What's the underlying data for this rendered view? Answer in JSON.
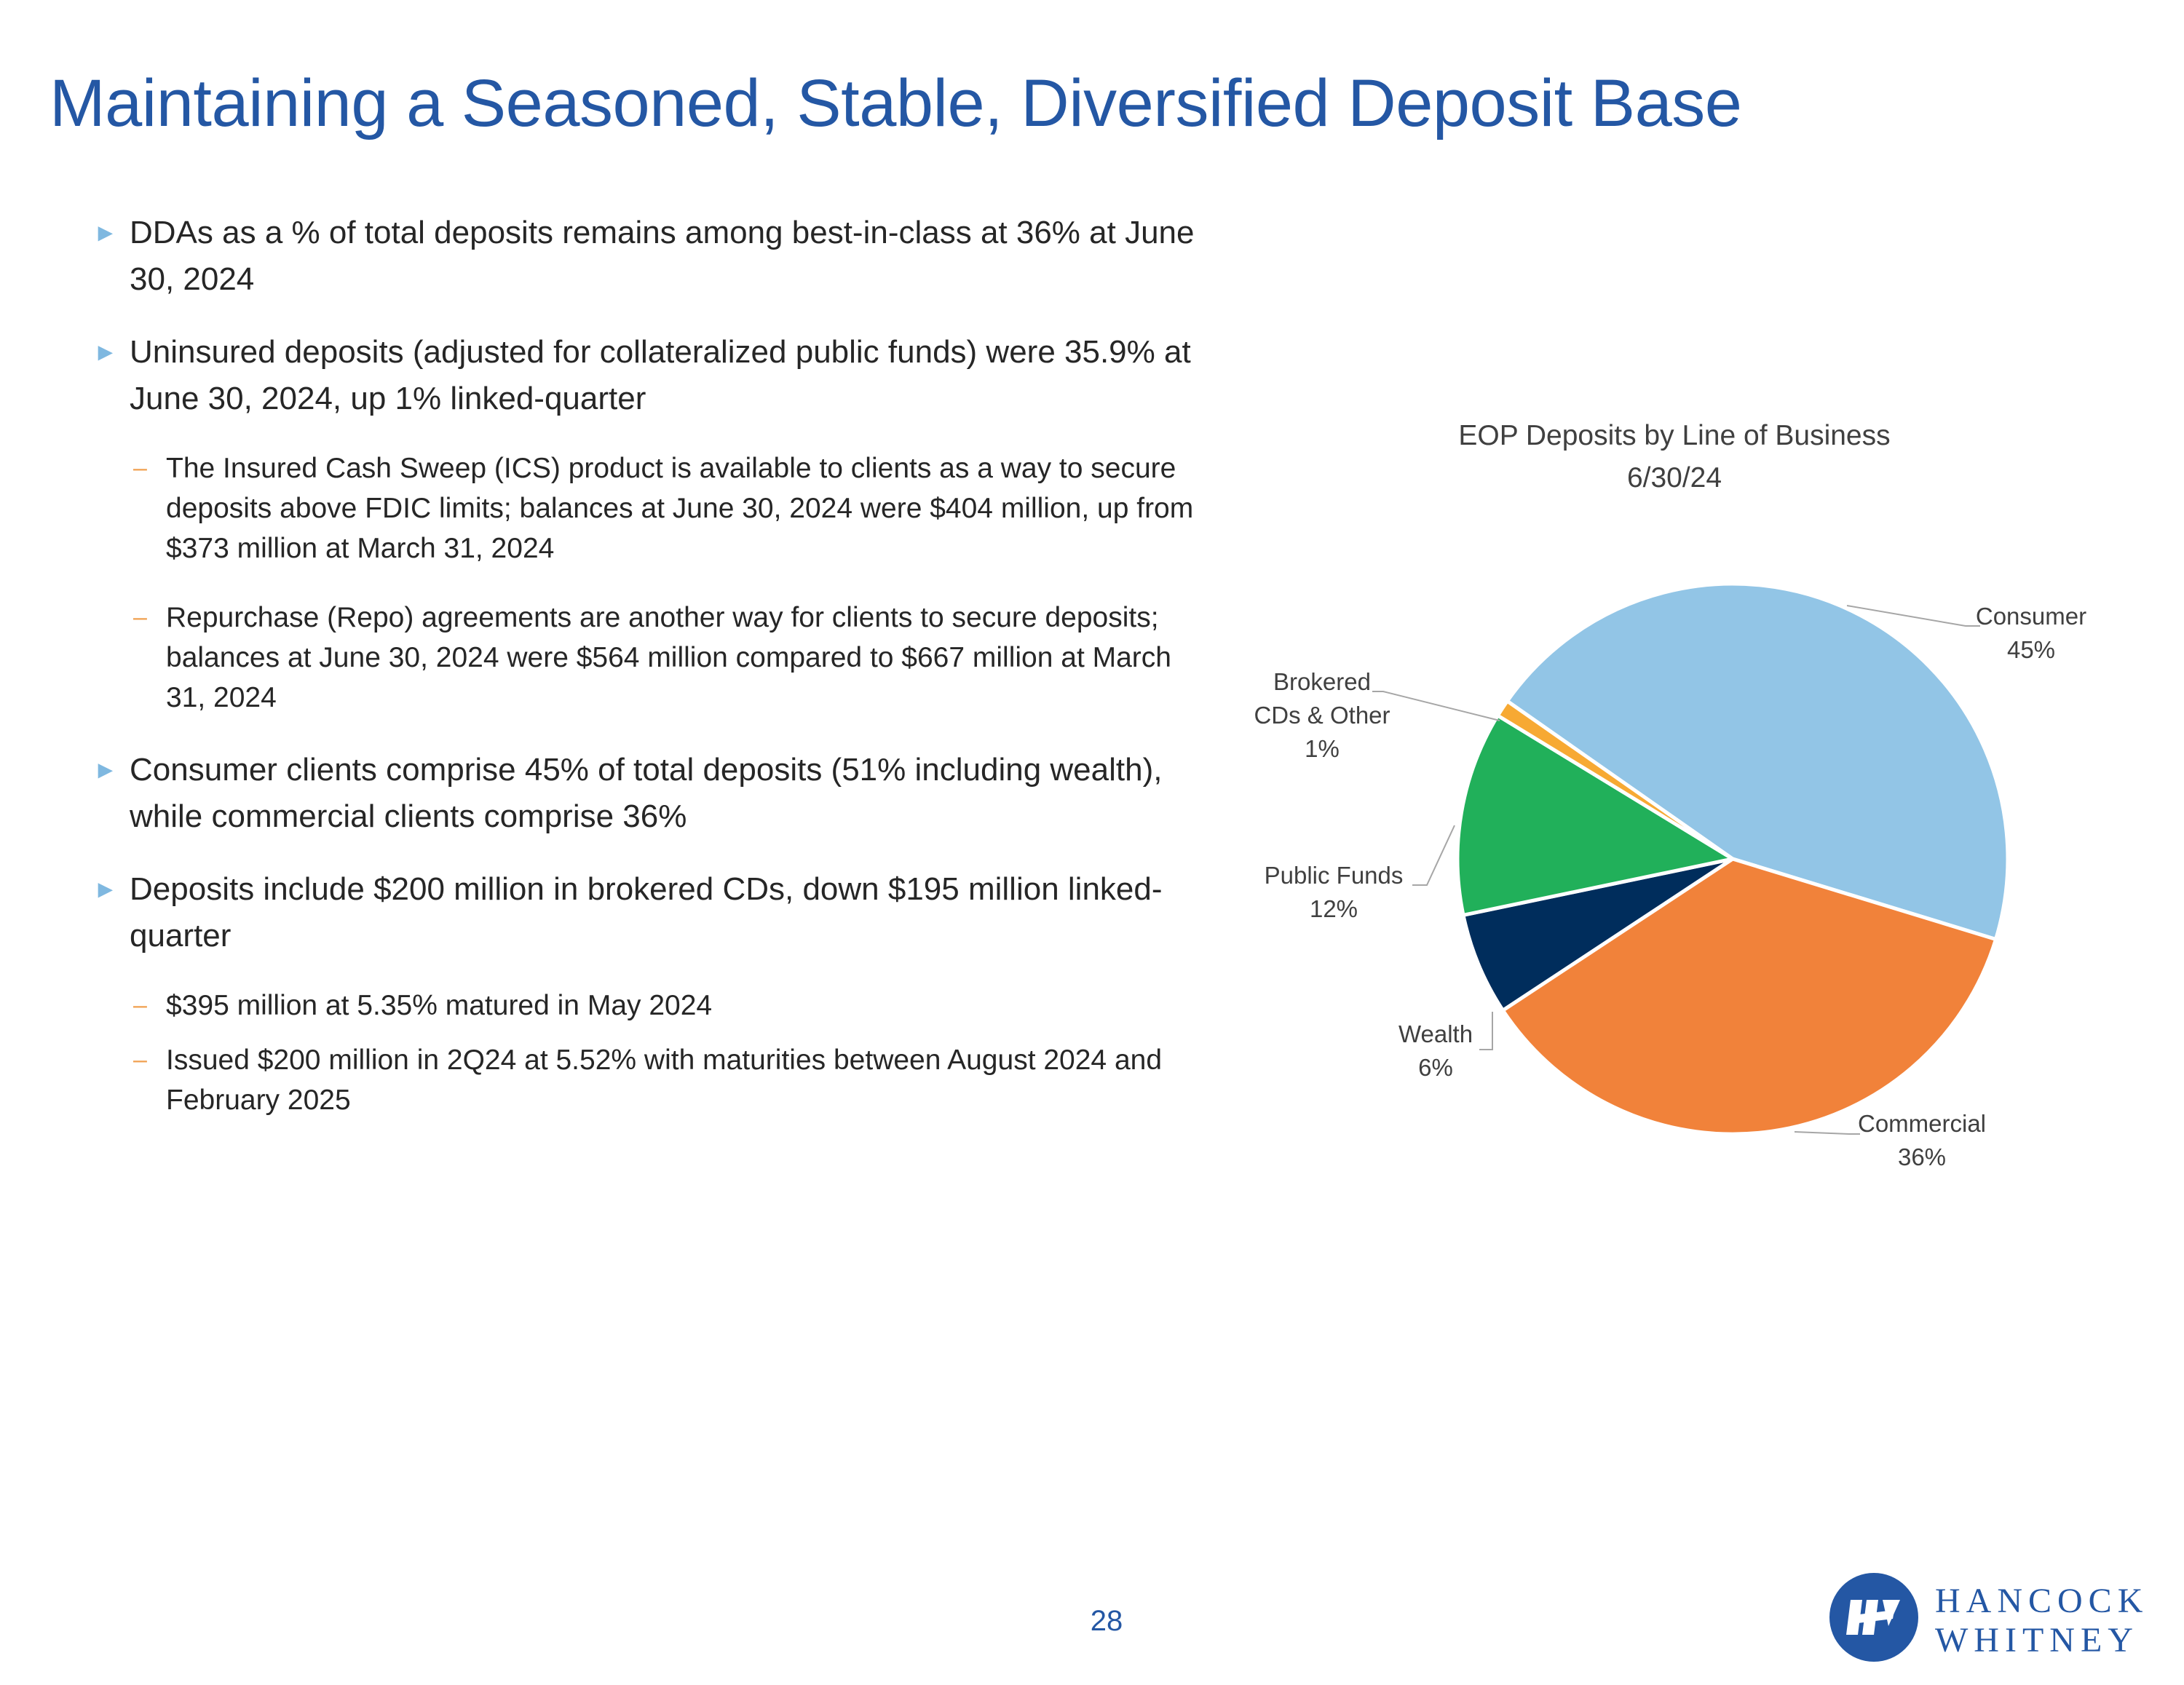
{
  "slide": {
    "title": "Maintaining a Seasoned, Stable, Diversified Deposit Base",
    "page_number": "28"
  },
  "bullets": [
    {
      "text": "DDAs as a % of total deposits remains among best-in-class at 36% at June 30, 2024",
      "subs": []
    },
    {
      "text": "Uninsured deposits (adjusted for collateralized public funds) were 35.9% at June 30, 2024, up 1% linked-quarter",
      "subs": [
        "The Insured Cash Sweep (ICS) product is available to clients as a way to secure deposits above FDIC limits; balances at June 30, 2024 were $404 million, up from $373 million at March 31, 2024",
        "Repurchase (Repo) agreements are another way for clients to secure deposits; balances at June 30, 2024 were $564 million compared to $667 million at March 31, 2024"
      ]
    },
    {
      "text": "Consumer clients comprise 45% of total deposits (51% including wealth), while commercial clients comprise 36%",
      "subs": []
    },
    {
      "text": "Deposits include $200 million in brokered CDs, down $195 million linked-quarter",
      "subs": [
        "$395 million at 5.35% matured in May 2024",
        "Issued $200 million in 2Q24 at 5.52% with maturities between August 2024 and February 2025"
      ]
    }
  ],
  "bullet_marker": "►",
  "sub_marker": "–",
  "chart_data": {
    "type": "pie",
    "title": "EOP Deposits by Line of Business",
    "subtitle": "6/30/24",
    "slices": [
      {
        "name": "Consumer",
        "label_lines": [
          "Consumer"
        ],
        "value": 45,
        "pct_label": "45%",
        "color": "#92c5e6"
      },
      {
        "name": "Commercial",
        "label_lines": [
          "Commercial"
        ],
        "value": 36,
        "pct_label": "36%",
        "color": "#f1823a"
      },
      {
        "name": "Wealth",
        "label_lines": [
          "Wealth"
        ],
        "value": 6,
        "pct_label": "6%",
        "color": "#002d5c"
      },
      {
        "name": "Public Funds",
        "label_lines": [
          "Public Funds"
        ],
        "value": 12,
        "pct_label": "12%",
        "color": "#21b05a"
      },
      {
        "name": "Brokered CDs & Other",
        "label_lines": [
          "Brokered",
          "CDs & Other"
        ],
        "value": 1,
        "pct_label": "1%",
        "color": "#f7a933"
      }
    ]
  },
  "logo": {
    "line1": "HANCOCK",
    "line2": "WHITNEY",
    "color": "#2457a4"
  }
}
